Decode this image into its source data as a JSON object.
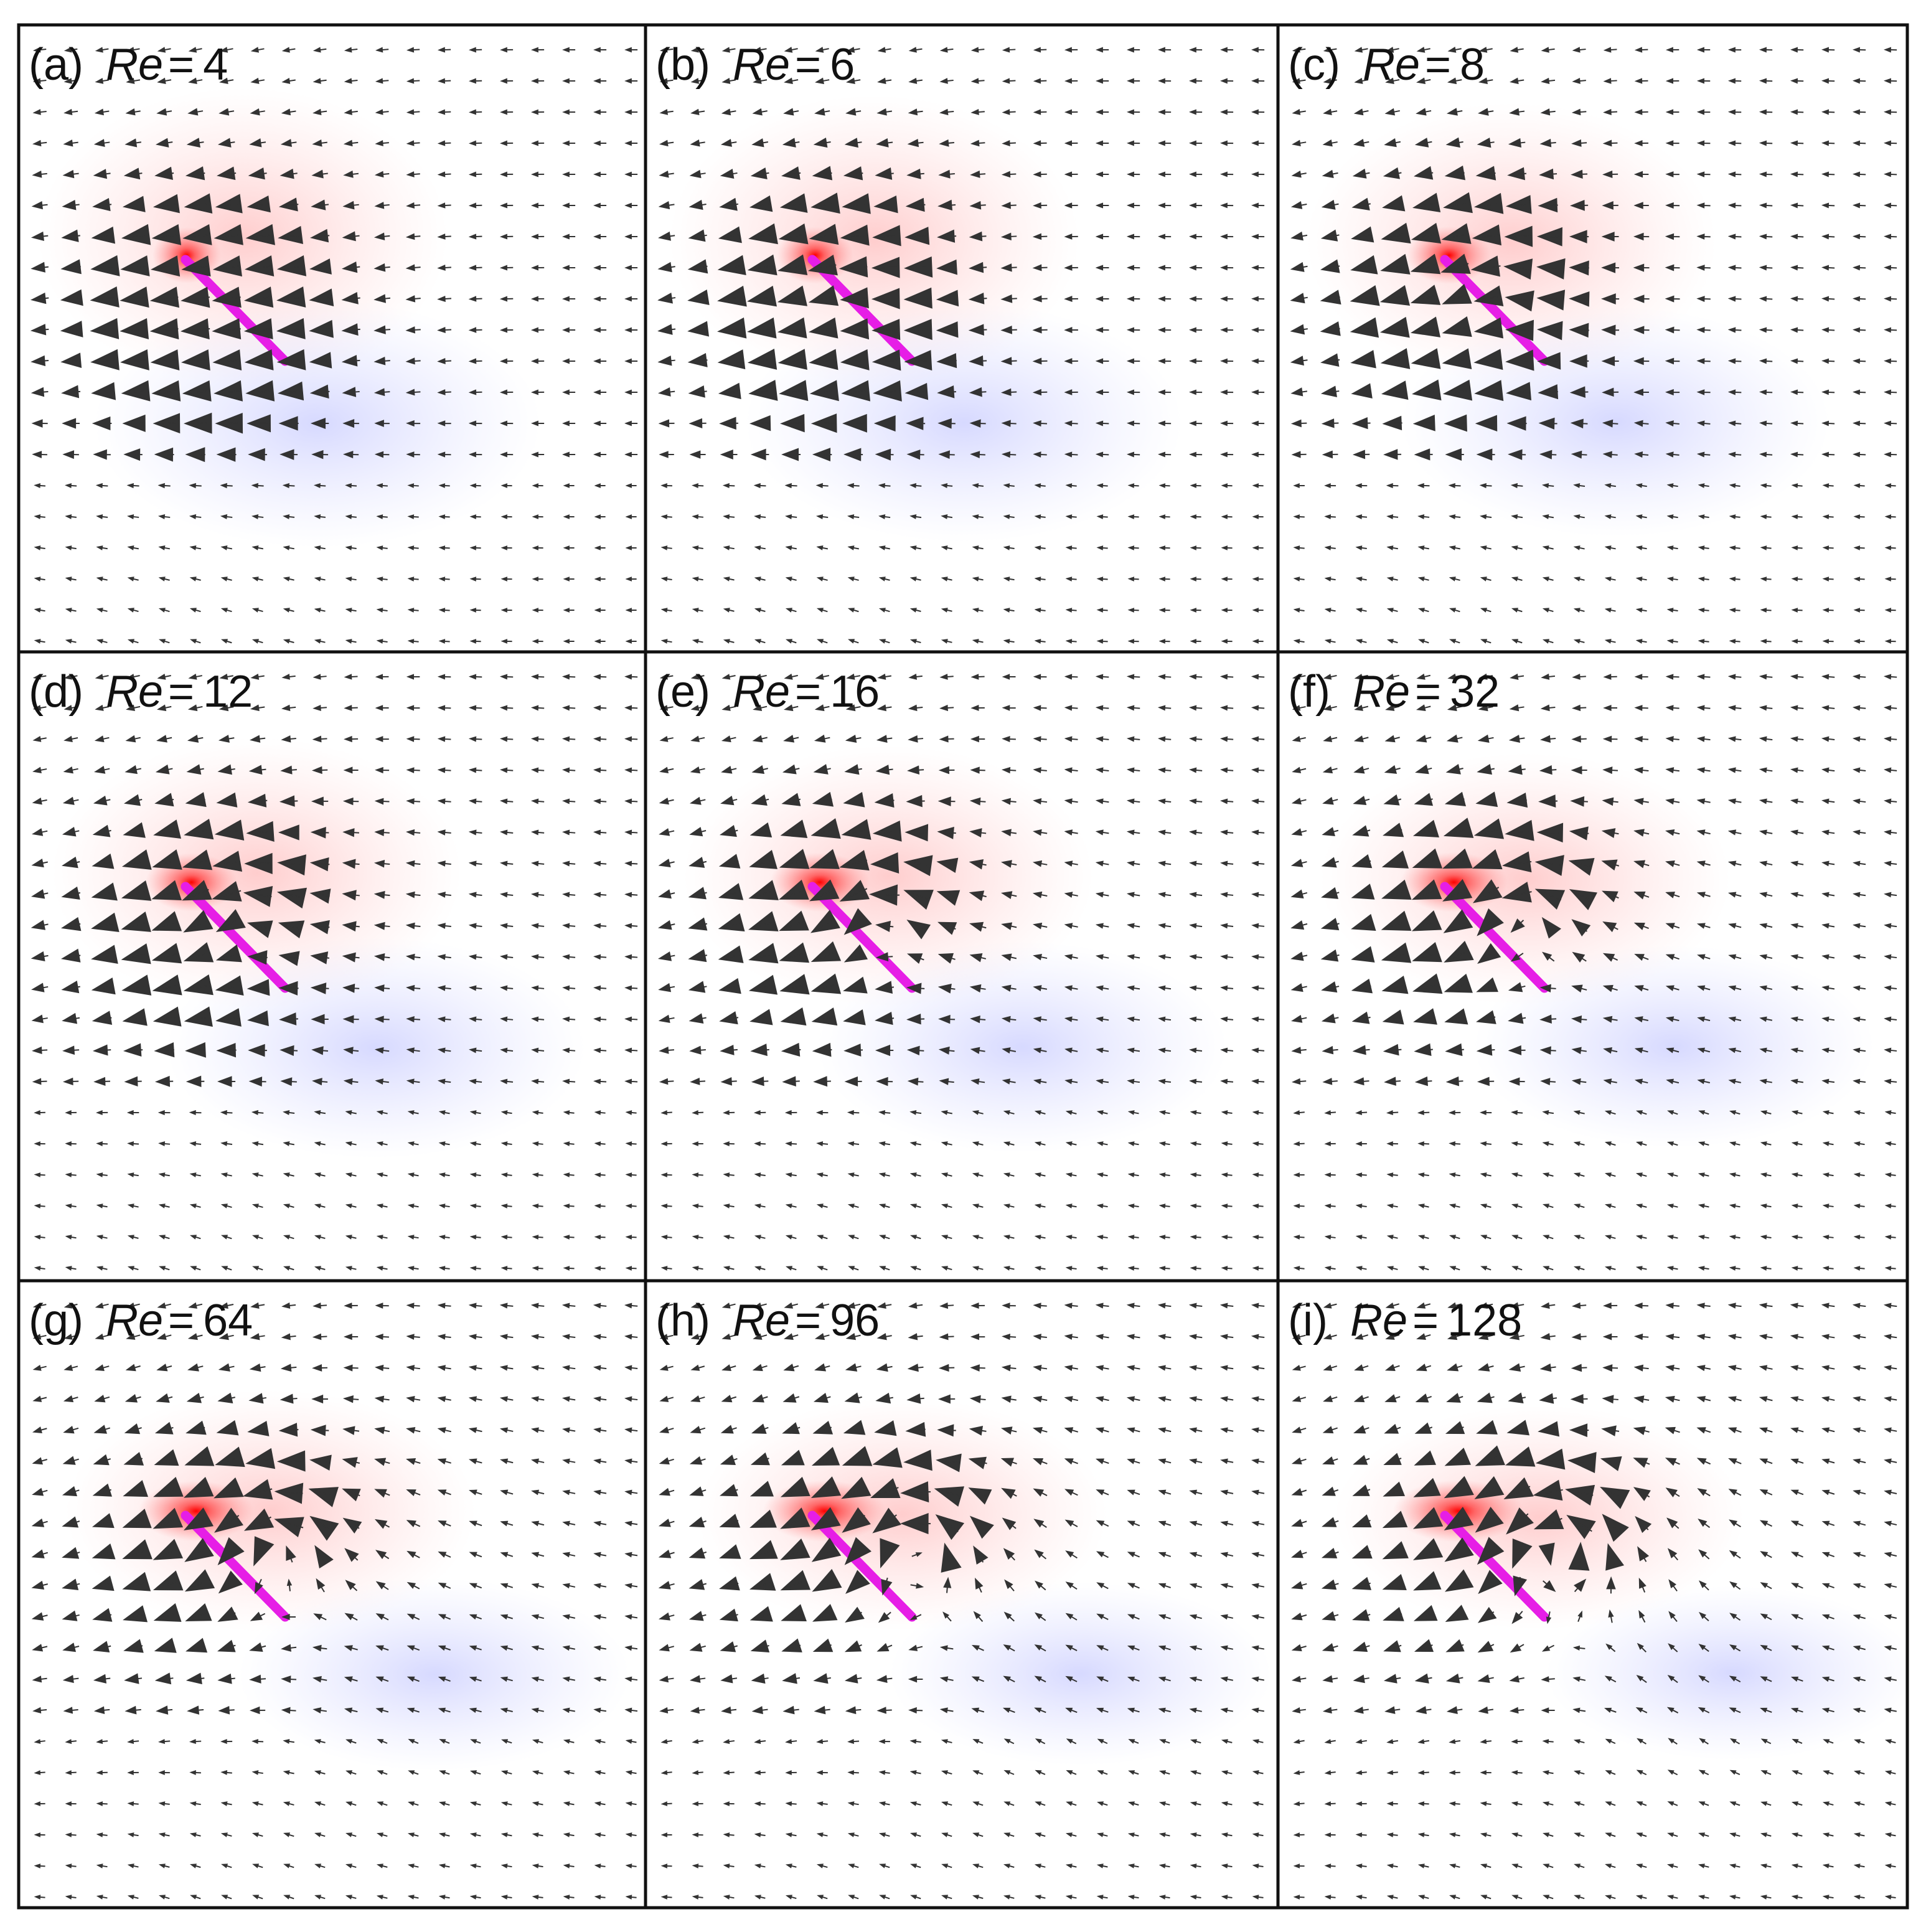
{
  "symbol": "Re",
  "relation": "=",
  "panels": [
    {
      "label": "(a)",
      "value": 4
    },
    {
      "label": "(b)",
      "value": 6
    },
    {
      "label": "(c)",
      "value": 8
    },
    {
      "label": "(d)",
      "value": 12
    },
    {
      "label": "(e)",
      "value": 16
    },
    {
      "label": "(f)",
      "value": 32
    },
    {
      "label": "(g)",
      "value": 64
    },
    {
      "label": "(h)",
      "value": 96
    },
    {
      "label": "(i)",
      "value": 128
    }
  ]
}
